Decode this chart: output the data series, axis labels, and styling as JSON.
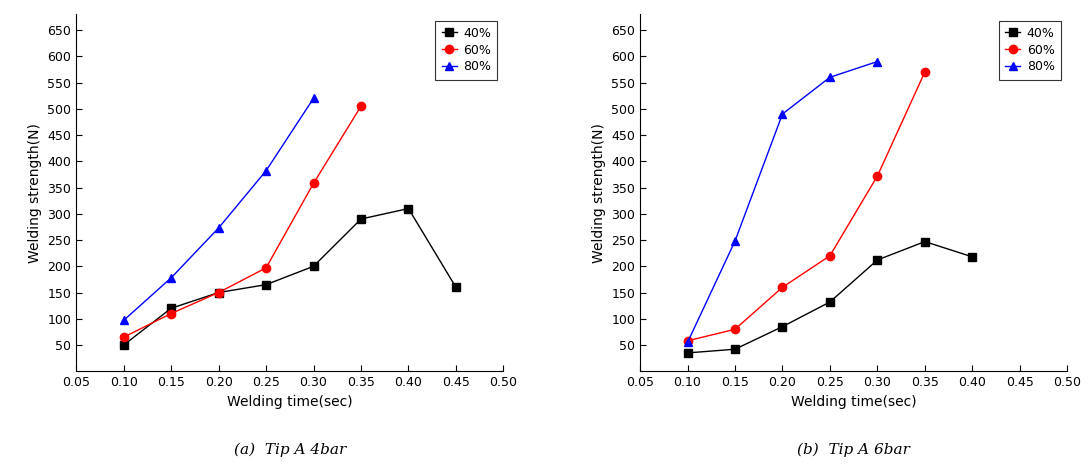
{
  "subplot_a": {
    "series": {
      "40%": {
        "x": [
          0.1,
          0.15,
          0.2,
          0.25,
          0.3,
          0.35,
          0.4,
          0.45
        ],
        "y": [
          50,
          120,
          150,
          165,
          200,
          290,
          310,
          160
        ],
        "color": "#000000",
        "marker": "s",
        "linestyle": "-"
      },
      "60%": {
        "x": [
          0.1,
          0.15,
          0.2,
          0.25,
          0.3,
          0.35
        ],
        "y": [
          65,
          110,
          150,
          197,
          358,
          505
        ],
        "color": "#ff0000",
        "marker": "o",
        "linestyle": "-"
      },
      "80%": {
        "x": [
          0.1,
          0.15,
          0.2,
          0.25,
          0.3
        ],
        "y": [
          97,
          178,
          273,
          382,
          520
        ],
        "color": "#0000ff",
        "marker": "^",
        "linestyle": "-"
      }
    },
    "xlabel": "Welding time(sec)",
    "ylabel": "Welding strength(N)",
    "xlim": [
      0.05,
      0.5
    ],
    "ylim": [
      0,
      680
    ],
    "yticks": [
      50,
      100,
      150,
      200,
      250,
      300,
      350,
      400,
      450,
      500,
      550,
      600,
      650
    ],
    "xticks": [
      0.05,
      0.1,
      0.15,
      0.2,
      0.25,
      0.3,
      0.35,
      0.4,
      0.45,
      0.5
    ]
  },
  "subplot_b": {
    "series": {
      "40%": {
        "x": [
          0.1,
          0.15,
          0.2,
          0.25,
          0.3,
          0.35,
          0.4
        ],
        "y": [
          35,
          42,
          85,
          132,
          212,
          247,
          218
        ],
        "color": "#000000",
        "marker": "s",
        "linestyle": "-"
      },
      "60%": {
        "x": [
          0.1,
          0.15,
          0.2,
          0.25,
          0.3,
          0.35
        ],
        "y": [
          58,
          80,
          160,
          220,
          372,
          570
        ],
        "color": "#ff0000",
        "marker": "o",
        "linestyle": "-"
      },
      "80%": {
        "x": [
          0.1,
          0.15,
          0.2,
          0.25,
          0.3
        ],
        "y": [
          55,
          248,
          490,
          560,
          590
        ],
        "color": "#0000ff",
        "marker": "^",
        "linestyle": "-"
      }
    },
    "xlabel": "Welding time(sec)",
    "ylabel": "Welding strength(N)",
    "xlim": [
      0.05,
      0.5
    ],
    "ylim": [
      0,
      680
    ],
    "yticks": [
      50,
      100,
      150,
      200,
      250,
      300,
      350,
      400,
      450,
      500,
      550,
      600,
      650
    ],
    "xticks": [
      0.05,
      0.1,
      0.15,
      0.2,
      0.25,
      0.3,
      0.35,
      0.4,
      0.45,
      0.5
    ]
  },
  "marker_size": 6,
  "linewidth": 1.0,
  "caption_a": "(a)  Tip A 4bar",
  "caption_b": "(b)  Tip A 6bar",
  "caption_fontsize": 11,
  "legend_order": [
    "40%",
    "60%",
    "80%"
  ],
  "xlabel_fontsize": 10,
  "ylabel_fontsize": 10,
  "tick_fontsize": 9
}
